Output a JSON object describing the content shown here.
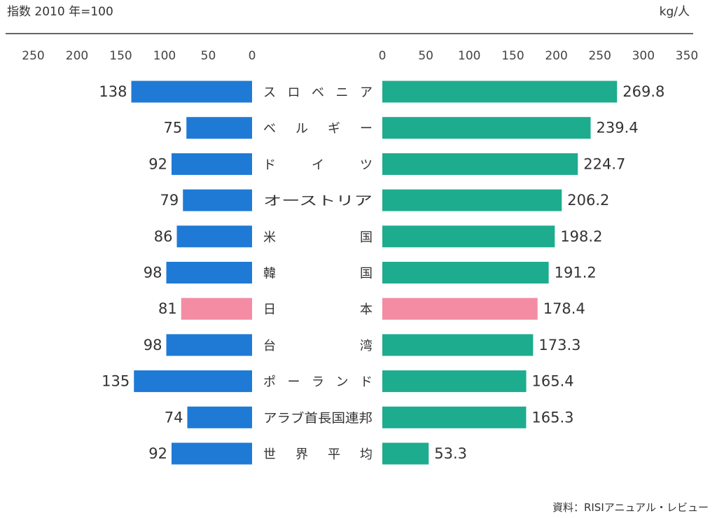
{
  "chart_data": [
    {
      "type": "bar",
      "orientation": "horizontal",
      "direction": "leftward",
      "title": "指数 2010 年=100",
      "categories": [
        "スロベニア",
        "ベルギー",
        "ドイツ",
        "オーストリア",
        "米国",
        "韓国",
        "日本",
        "台湾",
        "ポーランド",
        "アラブ首長国連邦",
        "世界平均"
      ],
      "values": [
        138,
        75,
        92,
        79,
        86,
        98,
        81,
        98,
        135,
        74,
        92
      ],
      "xlim": [
        0,
        250
      ],
      "ticks": [
        250,
        200,
        150,
        100,
        50,
        0
      ],
      "grid": false
    },
    {
      "type": "bar",
      "orientation": "horizontal",
      "title": "kg/人",
      "categories": [
        "スロベニア",
        "ベルギー",
        "ドイツ",
        "オーストリア",
        "米国",
        "韓国",
        "日本",
        "台湾",
        "ポーランド",
        "アラブ首長国連邦",
        "世界平均"
      ],
      "values": [
        269.8,
        239.4,
        224.7,
        206.2,
        198.2,
        191.2,
        178.4,
        173.3,
        165.4,
        165.3,
        53.3
      ],
      "value_labels": [
        "269.8",
        "239.4",
        "224.7",
        "206.2",
        "198.2",
        "191.2",
        "178.4",
        "173.3",
        "165.4",
        "165.3",
        "53.3"
      ],
      "xlim": [
        0,
        350
      ],
      "ticks": [
        0,
        50,
        100,
        150,
        200,
        250,
        300,
        350
      ],
      "grid": false
    }
  ],
  "category_labels": [
    [
      "ス",
      "ロ",
      "ベ",
      "ニ",
      "ア"
    ],
    [
      "ベ",
      "ル",
      "ギ",
      "ー"
    ],
    [
      "ド",
      "イ",
      "ツ"
    ],
    [
      "オーストリア"
    ],
    [
      "米",
      "国"
    ],
    [
      "韓",
      "国"
    ],
    [
      "日",
      "本"
    ],
    [
      "台",
      "湾"
    ],
    [
      "ポ",
      "ー",
      "ラ",
      "ン",
      "ド"
    ],
    [
      "アラブ首長国連邦"
    ],
    [
      "世",
      "界",
      "平",
      "均"
    ]
  ],
  "highlight_category": "日本",
  "colors": {
    "left_bar": "#1f7ad6",
    "right_bar": "#1eac8e",
    "highlight": "#f48ca3",
    "axis": "#333333"
  },
  "source": "資料：RISIアニュアル・レビュー"
}
